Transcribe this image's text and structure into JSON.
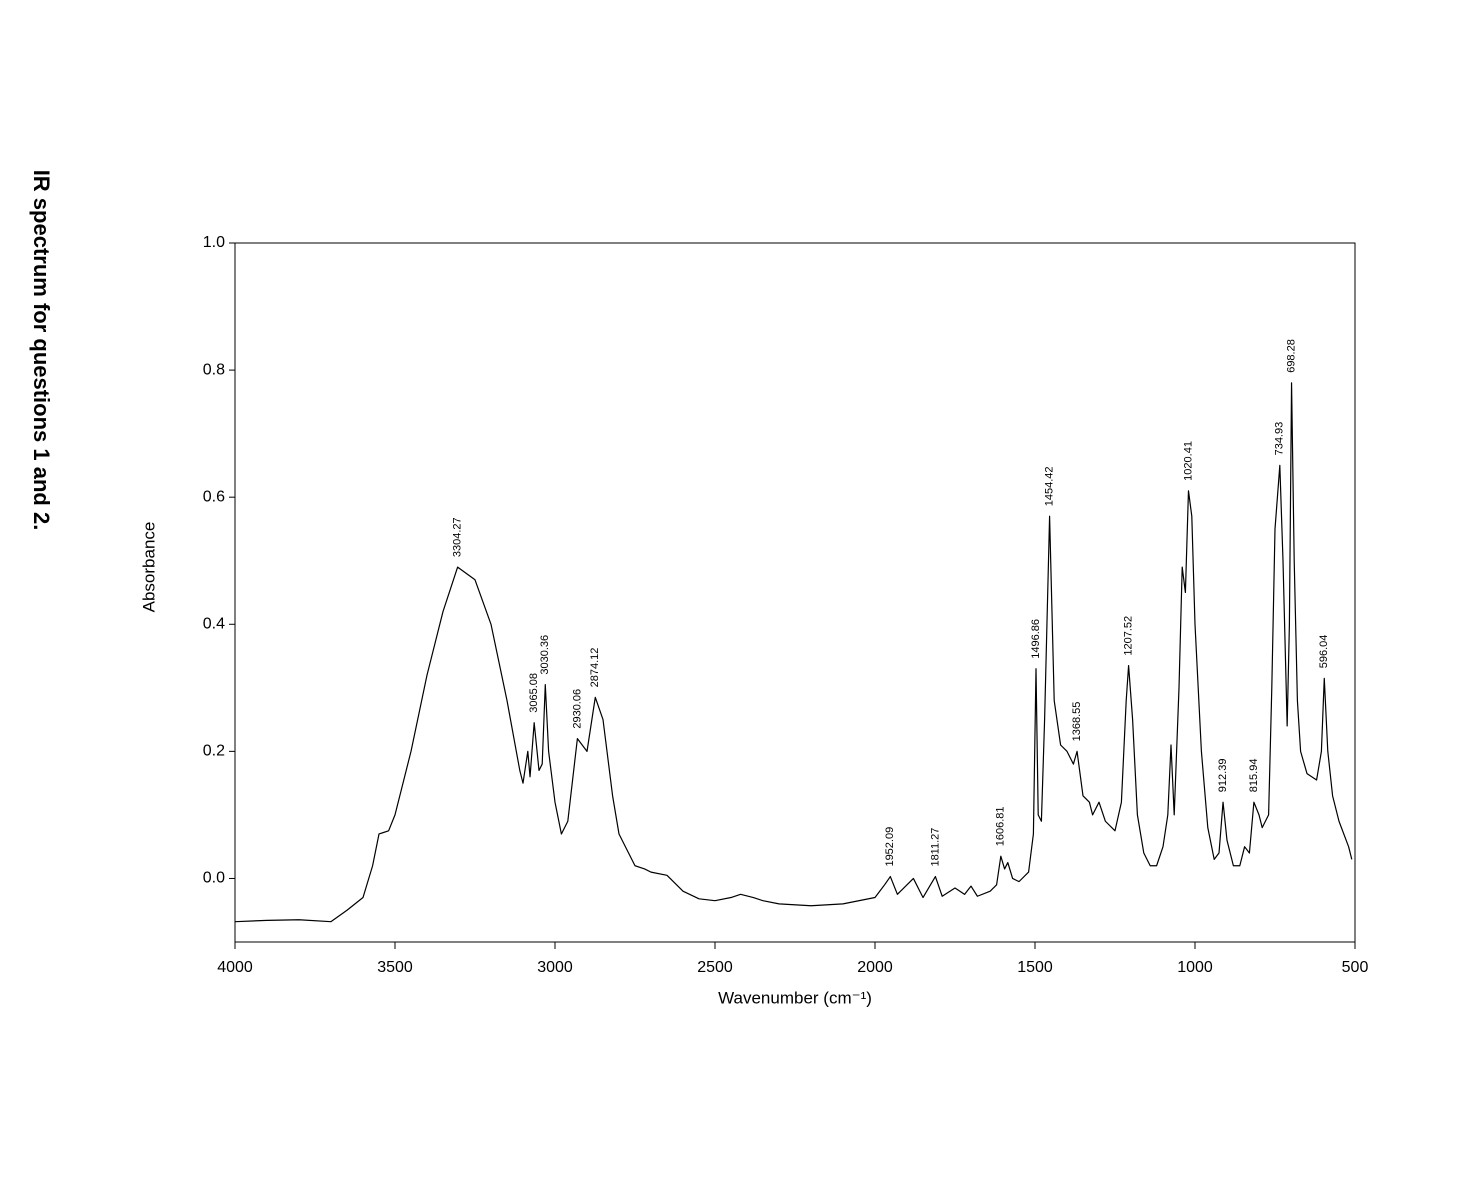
{
  "chart_data": {
    "type": "line",
    "title": "IR spectrum for questions 1 and 2.",
    "x_label": "Wavenumber (cm⁻¹)",
    "y_label": "Absorbance",
    "xlim": [
      4000,
      500
    ],
    "ylim": [
      -0.1,
      1.0
    ],
    "xticks": [
      4000,
      3500,
      3000,
      2500,
      2000,
      1500,
      1000,
      500
    ],
    "yticks": [
      {
        "value": 0,
        "label": "0.0"
      },
      0.2,
      0.4,
      0.6,
      0.8,
      {
        "value": 1,
        "label": "1.0"
      }
    ],
    "x": [
      4000,
      3900,
      3800,
      3700,
      3650,
      3600,
      3570,
      3550,
      3520,
      3500,
      3450,
      3400,
      3350,
      3304.27,
      3250,
      3200,
      3150,
      3110,
      3100,
      3085,
      3078,
      3065.08,
      3050,
      3040,
      3030.36,
      3020,
      3000,
      2980,
      2960,
      2930.06,
      2900,
      2874.12,
      2850,
      2820,
      2800,
      2750,
      2720,
      2700,
      2650,
      2600,
      2550,
      2500,
      2450,
      2420,
      2380,
      2350,
      2300,
      2200,
      2100,
      2000,
      1970,
      1952.09,
      1930,
      1880,
      1850,
      1811.27,
      1790,
      1750,
      1720,
      1700,
      1680,
      1640,
      1620,
      1606.81,
      1595,
      1585,
      1570,
      1550,
      1520,
      1505,
      1496.86,
      1490,
      1480,
      1470,
      1454.42,
      1440,
      1420,
      1400,
      1380,
      1368.55,
      1350,
      1330,
      1320,
      1300,
      1280,
      1250,
      1230,
      1215,
      1207.52,
      1195,
      1180,
      1160,
      1140,
      1120,
      1100,
      1085,
      1075,
      1065,
      1050,
      1040,
      1030,
      1020.41,
      1010,
      1000,
      980,
      960,
      940,
      925,
      912.39,
      900,
      880,
      860,
      845,
      830,
      815.94,
      800,
      790,
      770,
      760,
      750,
      734.93,
      725,
      712,
      705,
      698.28,
      690,
      680,
      670,
      650,
      620,
      605,
      596.04,
      585,
      570,
      550,
      520,
      510
    ],
    "series": [
      {
        "name": "Absorbance",
        "color": "#000000",
        "values": [
          -0.068,
          -0.066,
          -0.065,
          -0.068,
          -0.05,
          -0.03,
          0.02,
          0.07,
          0.075,
          0.1,
          0.2,
          0.32,
          0.42,
          0.49,
          0.47,
          0.4,
          0.28,
          0.17,
          0.15,
          0.2,
          0.16,
          0.245,
          0.17,
          0.18,
          0.305,
          0.2,
          0.12,
          0.07,
          0.09,
          0.22,
          0.2,
          0.285,
          0.25,
          0.13,
          0.07,
          0.02,
          0.015,
          0.01,
          0.005,
          -0.02,
          -0.032,
          -0.035,
          -0.03,
          -0.025,
          -0.03,
          -0.035,
          -0.04,
          -0.043,
          -0.04,
          -0.03,
          -0.01,
          0.003,
          -0.025,
          0.0,
          -0.03,
          0.003,
          -0.028,
          -0.015,
          -0.025,
          -0.012,
          -0.028,
          -0.02,
          -0.01,
          0.035,
          0.015,
          0.025,
          0.0,
          -0.005,
          0.01,
          0.07,
          0.33,
          0.1,
          0.09,
          0.25,
          0.57,
          0.28,
          0.21,
          0.2,
          0.18,
          0.2,
          0.13,
          0.12,
          0.1,
          0.12,
          0.09,
          0.075,
          0.12,
          0.28,
          0.335,
          0.25,
          0.1,
          0.04,
          0.02,
          0.02,
          0.05,
          0.1,
          0.21,
          0.1,
          0.3,
          0.49,
          0.45,
          0.61,
          0.57,
          0.4,
          0.2,
          0.08,
          0.03,
          0.04,
          0.12,
          0.06,
          0.02,
          0.02,
          0.05,
          0.04,
          0.12,
          0.1,
          0.08,
          0.1,
          0.3,
          0.55,
          0.65,
          0.5,
          0.24,
          0.4,
          0.78,
          0.5,
          0.28,
          0.2,
          0.165,
          0.155,
          0.2,
          0.315,
          0.2,
          0.13,
          0.09,
          0.05,
          0.03
        ]
      }
    ],
    "peaks": [
      {
        "x": 3304.27,
        "y": 0.49
      },
      {
        "x": 3065.08,
        "y": 0.245
      },
      {
        "x": 3030.36,
        "y": 0.305
      },
      {
        "x": 2930.06,
        "y": 0.22
      },
      {
        "x": 2874.12,
        "y": 0.285
      },
      {
        "x": 1952.09,
        "y": 0.003
      },
      {
        "x": 1811.27,
        "y": 0.003
      },
      {
        "x": 1606.81,
        "y": 0.035
      },
      {
        "x": 1496.86,
        "y": 0.33
      },
      {
        "x": 1454.42,
        "y": 0.57
      },
      {
        "x": 1368.55,
        "y": 0.2
      },
      {
        "x": 1207.52,
        "y": 0.335
      },
      {
        "x": 1020.41,
        "y": 0.61
      },
      {
        "x": 912.39,
        "y": 0.12
      },
      {
        "x": 815.94,
        "y": 0.12
      },
      {
        "x": 734.93,
        "y": 0.65
      },
      {
        "x": 698.28,
        "y": 0.78
      },
      {
        "x": 596.04,
        "y": 0.315
      }
    ]
  }
}
